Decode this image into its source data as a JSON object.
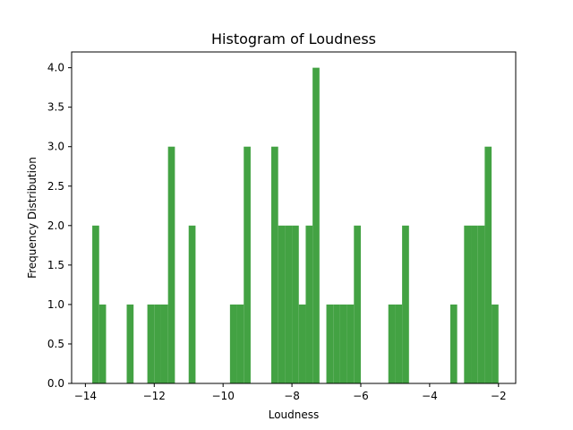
{
  "chart_data": {
    "type": "bar",
    "title": "Histogram of Loudness",
    "xlabel": "Loudness",
    "ylabel": "Frequency Distribution",
    "xlim": [
      -14.4,
      -1.5
    ],
    "ylim": [
      0,
      4.2
    ],
    "bar_color": "#43a243",
    "xticks": [
      -14,
      -12,
      -10,
      -8,
      -6,
      -4,
      -2
    ],
    "xtick_labels": [
      "−14",
      "−12",
      "−10",
      "−8",
      "−6",
      "−4",
      "−2"
    ],
    "yticks": [
      0,
      0.5,
      1,
      1.5,
      2,
      2.5,
      3,
      3.5,
      4
    ],
    "ytick_labels": [
      "0.0",
      "0.5",
      "1.0",
      "1.5",
      "2.0",
      "2.5",
      "3.0",
      "3.5",
      "4.0"
    ],
    "bins": [
      {
        "x0": -13.8,
        "x1": -13.6,
        "count": 2
      },
      {
        "x0": -13.6,
        "x1": -13.4,
        "count": 1
      },
      {
        "x0": -12.8,
        "x1": -12.6,
        "count": 1
      },
      {
        "x0": -12.2,
        "x1": -12.0,
        "count": 1
      },
      {
        "x0": -12.0,
        "x1": -11.8,
        "count": 1
      },
      {
        "x0": -11.8,
        "x1": -11.6,
        "count": 1
      },
      {
        "x0": -11.6,
        "x1": -11.4,
        "count": 3
      },
      {
        "x0": -11.0,
        "x1": -10.8,
        "count": 2
      },
      {
        "x0": -9.8,
        "x1": -9.6,
        "count": 1
      },
      {
        "x0": -9.6,
        "x1": -9.4,
        "count": 1
      },
      {
        "x0": -9.4,
        "x1": -9.2,
        "count": 3
      },
      {
        "x0": -8.6,
        "x1": -8.4,
        "count": 3
      },
      {
        "x0": -8.4,
        "x1": -8.2,
        "count": 2
      },
      {
        "x0": -8.2,
        "x1": -8.0,
        "count": 2
      },
      {
        "x0": -8.0,
        "x1": -7.8,
        "count": 2
      },
      {
        "x0": -7.8,
        "x1": -7.6,
        "count": 1
      },
      {
        "x0": -7.6,
        "x1": -7.4,
        "count": 2
      },
      {
        "x0": -7.4,
        "x1": -7.2,
        "count": 4
      },
      {
        "x0": -7.0,
        "x1": -6.8,
        "count": 1
      },
      {
        "x0": -6.8,
        "x1": -6.6,
        "count": 1
      },
      {
        "x0": -6.6,
        "x1": -6.4,
        "count": 1
      },
      {
        "x0": -6.4,
        "x1": -6.2,
        "count": 1
      },
      {
        "x0": -6.2,
        "x1": -6.0,
        "count": 2
      },
      {
        "x0": -5.2,
        "x1": -5.0,
        "count": 1
      },
      {
        "x0": -5.0,
        "x1": -4.8,
        "count": 1
      },
      {
        "x0": -4.8,
        "x1": -4.6,
        "count": 2
      },
      {
        "x0": -3.4,
        "x1": -3.2,
        "count": 1
      },
      {
        "x0": -3.0,
        "x1": -2.8,
        "count": 2
      },
      {
        "x0": -2.8,
        "x1": -2.6,
        "count": 2
      },
      {
        "x0": -2.6,
        "x1": -2.4,
        "count": 2
      },
      {
        "x0": -2.4,
        "x1": -2.2,
        "count": 3
      },
      {
        "x0": -2.2,
        "x1": -2.0,
        "count": 1
      }
    ]
  }
}
